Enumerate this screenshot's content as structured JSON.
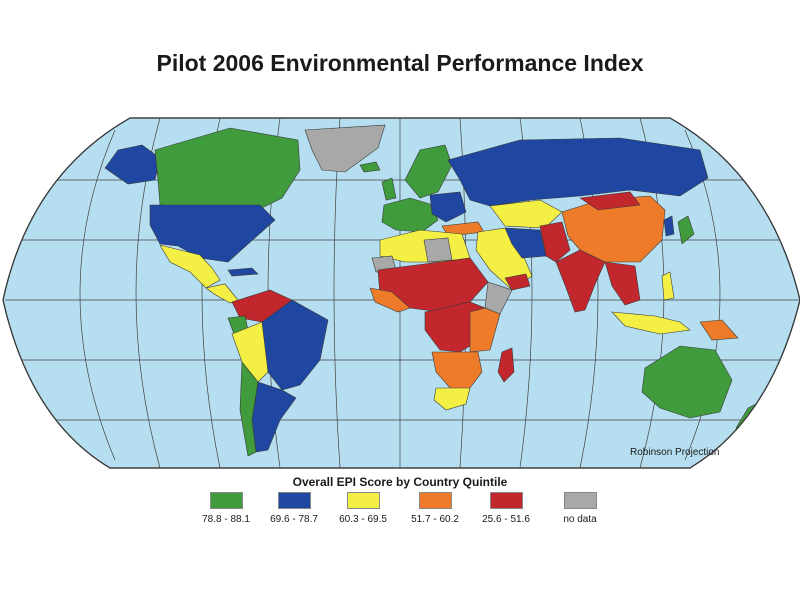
{
  "title": "Pilot 2006 Environmental Performance Index",
  "projection_label": "Robinson Projection",
  "legend": {
    "title": "Overall EPI Score by Country Quintile",
    "items": [
      {
        "label": "78.8 - 88.1",
        "color": "#3f9b3c"
      },
      {
        "label": "69.6 - 78.7",
        "color": "#1f47a2"
      },
      {
        "label": "60.3 - 69.5",
        "color": "#f4ef45"
      },
      {
        "label": "51.7 - 60.2",
        "color": "#ee7b2a"
      },
      {
        "label": "25.6 - 51.6",
        "color": "#c1272d"
      },
      {
        "label": "no data",
        "color": "#a8a8a8"
      }
    ]
  },
  "colors": {
    "ocean": "#b5dff0",
    "border": "#3a3a3a",
    "graticule": "#404040"
  }
}
